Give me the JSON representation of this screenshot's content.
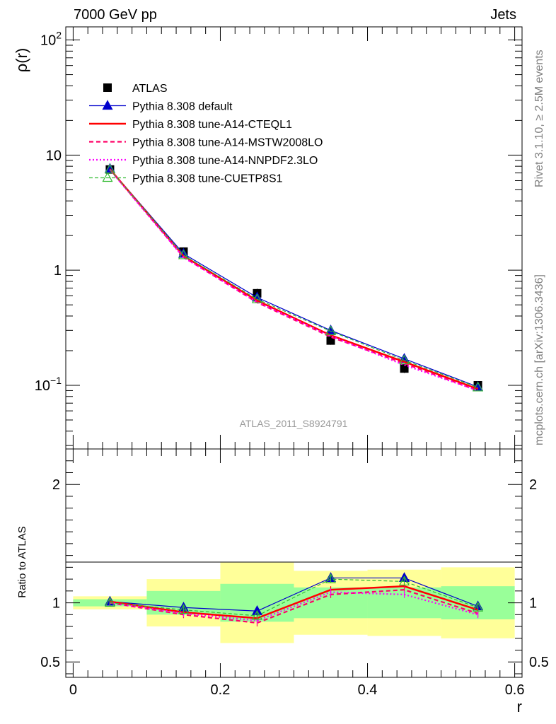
{
  "header": {
    "left": "7000 GeV pp",
    "right": "Jets"
  },
  "side_labels": {
    "rivet": "Rivet 3.1.10, ≥ 2.5M events",
    "mcplots": "mcplots.cern.ch [arXiv:1306.3436]"
  },
  "analysis_id": "ATLAS_2011_S8924791",
  "chart_data": [
    {
      "type": "line",
      "panel": "main",
      "ylabel": "ρ(r)",
      "yscale": "log",
      "ylim": [
        0.028,
        130
      ],
      "xlim": [
        -0.01,
        0.61
      ],
      "y_tick_labels": [
        "10−1",
        "1",
        "10",
        "102"
      ],
      "x": [
        0.05,
        0.15,
        0.25,
        0.35,
        0.45,
        0.55
      ],
      "series": [
        {
          "name": "ATLAS",
          "color": "#000000",
          "marker": "square",
          "values": [
            7.5,
            1.45,
            0.63,
            0.245,
            0.14,
            0.1
          ],
          "errors": [
            0.3,
            0.08,
            0.06,
            0.02,
            0.012,
            0.007
          ]
        },
        {
          "name": "Pythia 8.308 default",
          "color": "#0000cc",
          "line": "solid",
          "marker": "triangle",
          "values": [
            7.6,
            1.39,
            0.58,
            0.3,
            0.17,
            0.097
          ]
        },
        {
          "name": "Pythia 8.308 tune-A14-CTEQL1",
          "color": "#ff0000",
          "line": "solid-thick",
          "values": [
            7.55,
            1.33,
            0.545,
            0.272,
            0.16,
            0.093
          ]
        },
        {
          "name": "Pythia 8.308 tune-A14-MSTW2008LO",
          "color": "#ff0066",
          "line": "dashed",
          "values": [
            7.5,
            1.3,
            0.525,
            0.263,
            0.155,
            0.09
          ]
        },
        {
          "name": "Pythia 8.308 tune-A14-NNPDF2.3LO",
          "color": "#ff00ff",
          "line": "dotted",
          "values": [
            7.45,
            1.29,
            0.53,
            0.268,
            0.15,
            0.09
          ]
        },
        {
          "name": "Pythia 8.308 tune-CUETP8S1",
          "color": "#33bb33",
          "line": "dashed",
          "marker": "open-triangle",
          "values": [
            7.5,
            1.35,
            0.56,
            0.295,
            0.165,
            0.096
          ]
        }
      ]
    },
    {
      "type": "line",
      "panel": "ratio",
      "ylabel": "Ratio to ATLAS",
      "ylim": [
        0.37,
        2.3
      ],
      "xlim": [
        -0.01,
        0.61
      ],
      "xlabel": "r",
      "x_ticks": [
        0,
        0.2,
        0.4,
        0.6
      ],
      "x_tick_labels": [
        "0",
        "0.2",
        "0.4",
        "0.6"
      ],
      "y_ticks": [
        0.5,
        1,
        2
      ],
      "y_tick_labels": [
        "0.5",
        "1",
        "2"
      ],
      "bins": [
        [
          0.0,
          0.1
        ],
        [
          0.1,
          0.2
        ],
        [
          0.2,
          0.3
        ],
        [
          0.3,
          0.4
        ],
        [
          0.4,
          0.5
        ],
        [
          0.5,
          0.6
        ]
      ],
      "band_green": [
        [
          0.97,
          1.03
        ],
        [
          0.9,
          1.1
        ],
        [
          0.84,
          1.16
        ],
        [
          0.87,
          1.13
        ],
        [
          0.87,
          1.13
        ],
        [
          0.86,
          1.14
        ]
      ],
      "band_yellow": [
        [
          0.945,
          1.055
        ],
        [
          0.8,
          1.2
        ],
        [
          0.66,
          1.34
        ],
        [
          0.73,
          1.27
        ],
        [
          0.72,
          1.28
        ],
        [
          0.7,
          1.3
        ]
      ],
      "series": [
        {
          "name": "Pythia 8.308 default",
          "values": [
            1.01,
            0.96,
            0.93,
            1.21,
            1.21,
            0.97
          ]
        },
        {
          "name": "Pythia 8.308 tune-A14-CTEQL1",
          "values": [
            1.01,
            0.92,
            0.87,
            1.11,
            1.14,
            0.94
          ]
        },
        {
          "name": "Pythia 8.308 tune-A14-MSTW2008LO",
          "values": [
            1.0,
            0.9,
            0.83,
            1.07,
            1.11,
            0.91
          ]
        },
        {
          "name": "Pythia 8.308 tune-A14-NNPDF2.3LO",
          "values": [
            1.0,
            0.91,
            0.85,
            1.09,
            1.07,
            0.9
          ]
        },
        {
          "name": "Pythia 8.308 tune-CUETP8S1",
          "values": [
            1.0,
            0.94,
            0.89,
            1.2,
            1.18,
            0.96
          ]
        }
      ]
    }
  ]
}
